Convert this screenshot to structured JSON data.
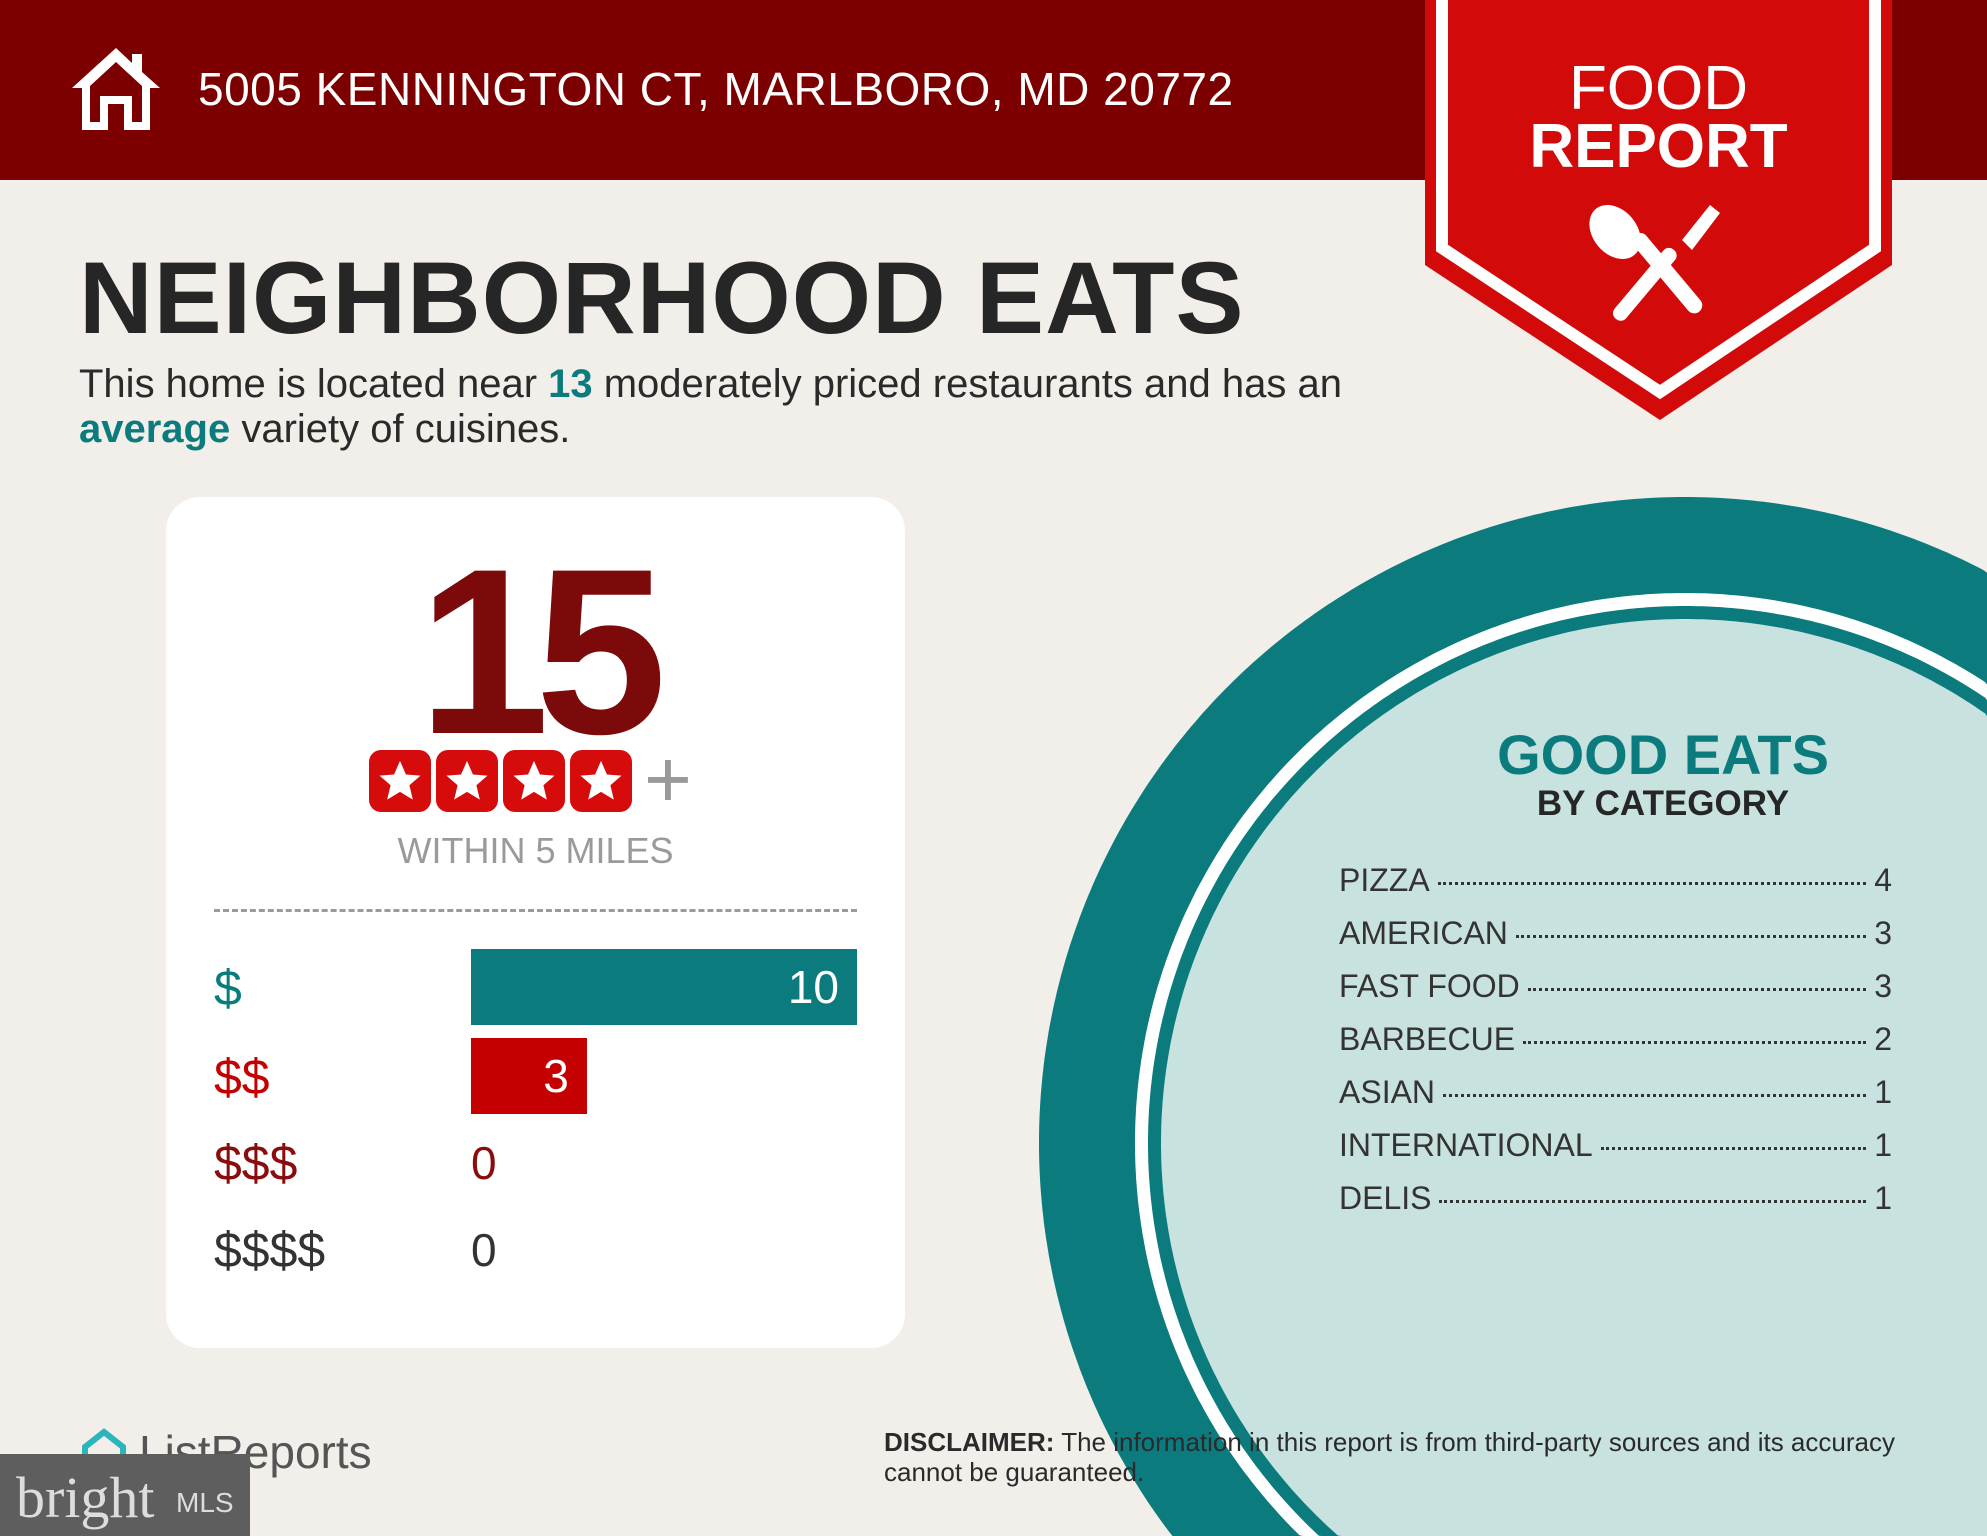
{
  "header": {
    "address": "5005 KENNINGTON CT, MARLBORO, MD 20772",
    "home_icon": "house-icon"
  },
  "badge": {
    "line1": "FOOD",
    "line2": "REPORT",
    "icon": "spoon-fork-icon"
  },
  "title": "NEIGHBORHOOD EATS",
  "description": {
    "part1": "This home is located near ",
    "count": "13",
    "part2": " moderately priced restaurants and has an ",
    "variety": "average",
    "part3": " variety of cuisines."
  },
  "card": {
    "count": "15",
    "rating_stars": 4,
    "plus": "+",
    "within": "WITHIN 5 MILES",
    "price_levels": [
      {
        "label": "$",
        "value": 10,
        "color": "#0b7b7e"
      },
      {
        "label": "$$",
        "value": 3,
        "color": "#c40000"
      },
      {
        "label": "$$$",
        "value": 0,
        "color": "#8a0c0c"
      },
      {
        "label": "$$$$",
        "value": 0,
        "color": "#333333"
      }
    ]
  },
  "good_eats": {
    "title": "GOOD EATS",
    "subtitle": "BY CATEGORY",
    "categories": [
      {
        "name": "PIZZA",
        "count": "4"
      },
      {
        "name": "AMERICAN",
        "count": "3"
      },
      {
        "name": "FAST FOOD",
        "count": "3"
      },
      {
        "name": "BARBECUE",
        "count": "2"
      },
      {
        "name": "ASIAN",
        "count": "1"
      },
      {
        "name": "INTERNATIONAL",
        "count": "1"
      },
      {
        "name": "DELIS",
        "count": "1"
      }
    ]
  },
  "disclaimer": {
    "label": "DISCLAIMER:",
    "text": " The information in this report is from third-party sources and its accuracy cannot be guaranteed."
  },
  "footer": {
    "listreports": "ListReports",
    "bright": "bright",
    "mls": "MLS"
  },
  "colors": {
    "header": "#7d0000",
    "badge": "#d20a0a",
    "teal": "#0b7b7e",
    "teal_light": "#c8e2df",
    "background": "#f2eeea"
  }
}
